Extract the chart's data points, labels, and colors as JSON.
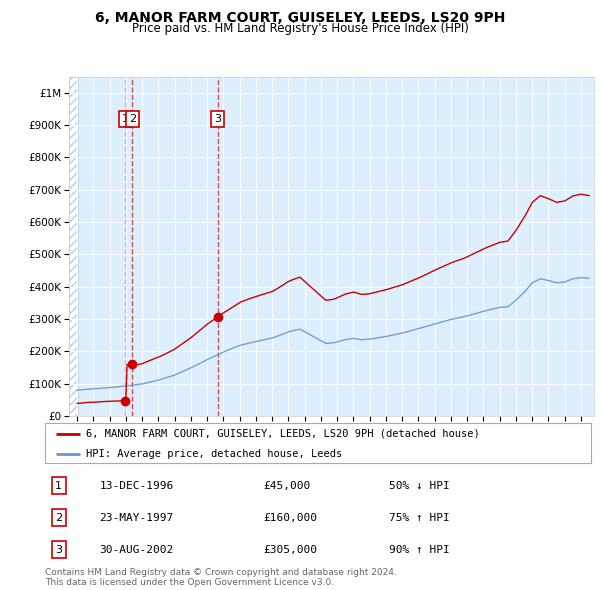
{
  "title": "6, MANOR FARM COURT, GUISELEY, LEEDS, LS20 9PH",
  "subtitle": "Price paid vs. HM Land Registry's House Price Index (HPI)",
  "legend_property": "6, MANOR FARM COURT, GUISELEY, LEEDS, LS20 9PH (detached house)",
  "legend_hpi": "HPI: Average price, detached house, Leeds",
  "transactions": [
    {
      "num": 1,
      "date": "13-DEC-1996",
      "price": 45000,
      "pct": "50%",
      "dir": "↓",
      "year": 1996.96
    },
    {
      "num": 2,
      "date": "23-MAY-1997",
      "price": 160000,
      "pct": "75%",
      "dir": "↑",
      "year": 1997.39
    },
    {
      "num": 3,
      "date": "30-AUG-2002",
      "price": 305000,
      "pct": "90%",
      "dir": "↑",
      "year": 2002.66
    }
  ],
  "footer": "Contains HM Land Registry data © Crown copyright and database right 2024.\nThis data is licensed under the Open Government Licence v3.0.",
  "property_color": "#cc0000",
  "hpi_color": "#6699cc",
  "vline_color_1": "#aabbdd",
  "vline_color_23": "#cc3333",
  "background_color": "#ddeeff",
  "hatch_color": "#aabbcc",
  "ylim_max": 1050000,
  "xlim_min": 1993.5,
  "xlim_max": 2025.8
}
